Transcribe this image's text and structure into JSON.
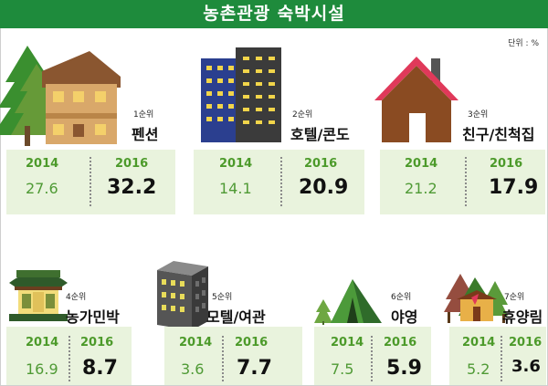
{
  "header": {
    "title": "농촌관광 숙박시설"
  },
  "unit": "단위 : %",
  "year_labels": {
    "a": "2014",
    "b": "2016"
  },
  "colors": {
    "header": "#1e8b3c",
    "panel": "#e9f3dd",
    "year": "#4c9a2a"
  },
  "chart_data": {
    "type": "table",
    "title": "농촌관광 숙박시설",
    "unit": "%",
    "categories": [
      "펜션",
      "호텔/콘도",
      "친구/친척집",
      "농가민박",
      "모텔/여관",
      "야영",
      "휴양림"
    ],
    "ranks": [
      "1순위",
      "2순위",
      "3순위",
      "4순위",
      "5순위",
      "6순위",
      "7순위"
    ],
    "series": [
      {
        "name": "2014",
        "values": [
          27.6,
          14.1,
          21.2,
          16.9,
          3.6,
          7.5,
          5.2
        ]
      },
      {
        "name": "2016",
        "values": [
          32.2,
          20.9,
          17.9,
          8.7,
          7.7,
          5.9,
          3.6
        ]
      }
    ]
  },
  "items": [
    {
      "rank": "1순위",
      "name": "펜션",
      "icon": "pension-house-icon",
      "v2014": "27.6",
      "v2016": "32.2"
    },
    {
      "rank": "2순위",
      "name": "호텔/콘도",
      "icon": "hotel-building-icon",
      "v2014": "14.1",
      "v2016": "20.9"
    },
    {
      "rank": "3순위",
      "name": "친구/친척집",
      "icon": "house-icon",
      "v2014": "21.2",
      "v2016": "17.9"
    },
    {
      "rank": "4순위",
      "name": "농가민박",
      "icon": "farmhouse-icon",
      "v2014": "16.9",
      "v2016": "8.7"
    },
    {
      "rank": "5순위",
      "name": "모텔/여관",
      "icon": "motel-building-icon",
      "v2014": "3.6",
      "v2016": "7.7"
    },
    {
      "rank": "6순위",
      "name": "야영",
      "icon": "tent-icon",
      "v2014": "7.5",
      "v2016": "5.9"
    },
    {
      "rank": "7순위",
      "name": "휴양림",
      "icon": "forest-cabin-icon",
      "v2014": "5.2",
      "v2016": "3.6"
    }
  ]
}
